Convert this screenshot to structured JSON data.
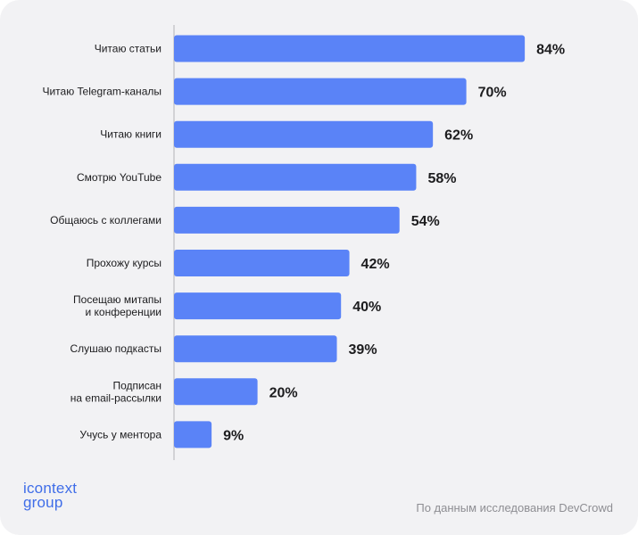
{
  "chart_data": {
    "type": "bar",
    "orientation": "horizontal",
    "categories": [
      [
        "Читаю статьи"
      ],
      [
        "Читаю Telegram-каналы"
      ],
      [
        "Читаю книги"
      ],
      [
        "Смотрю YouTube"
      ],
      [
        "Общаюсь с коллегами"
      ],
      [
        "Прохожу курсы"
      ],
      [
        "Посещаю митапы",
        "и конференции"
      ],
      [
        "Слушаю подкасты"
      ],
      [
        "Подписан",
        "на email-рассылки"
      ],
      [
        "Учусь у ментора"
      ]
    ],
    "values": [
      84,
      70,
      62,
      58,
      54,
      42,
      40,
      39,
      20,
      9
    ],
    "value_labels": [
      "84%",
      "70%",
      "62%",
      "58%",
      "54%",
      "42%",
      "40%",
      "39%",
      "20%",
      "9%"
    ],
    "xlim": [
      0,
      100
    ],
    "bar_color": "#5a83f7",
    "grid": false
  },
  "brand": {
    "line1": "icontext",
    "line2": "group",
    "color": "#3f6de8"
  },
  "source": "По данным исследования DevCrowd"
}
